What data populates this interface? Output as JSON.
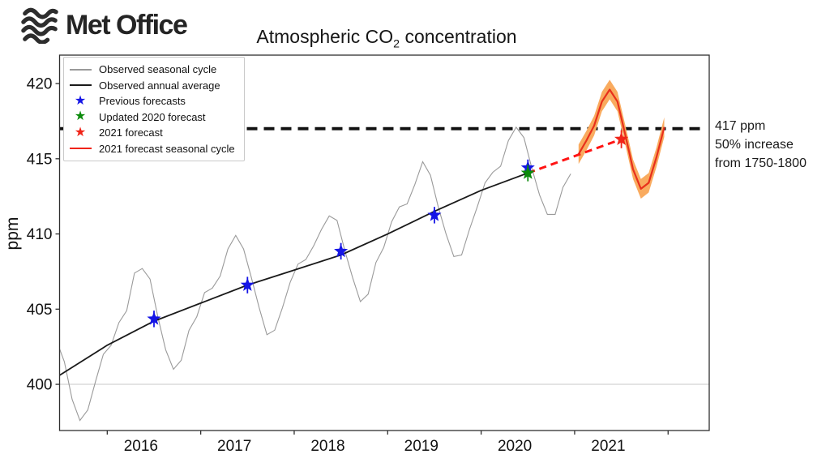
{
  "header": {
    "logo_text": "Met Office"
  },
  "title": {
    "prefix": "Atmospheric CO",
    "sub": "2",
    "suffix": " concentration"
  },
  "annotation": {
    "lines": [
      "417 ppm",
      "50% increase",
      "from 1750-1800"
    ]
  },
  "legend": {
    "items": [
      {
        "label": "Observed seasonal cycle",
        "swatch": "line",
        "color": "#9a9a9a"
      },
      {
        "label": "Observed annual average",
        "swatch": "line",
        "color": "#1a1a1a"
      },
      {
        "label": "Previous forecasts",
        "swatch": "star",
        "color": "#1515e6"
      },
      {
        "label": "Updated 2020 forecast",
        "swatch": "star",
        "color": "#0b8a0b"
      },
      {
        "label": "2021 forecast",
        "swatch": "star",
        "color": "#f02418"
      },
      {
        "label": "2021 forecast seasonal cycle",
        "swatch": "line",
        "color": "#f02418"
      }
    ]
  },
  "chart_data": {
    "type": "line",
    "title": "Atmospheric CO2 concentration",
    "xlabel": "",
    "ylabel": "ppm",
    "xlim": [
      2015.49,
      2022.44
    ],
    "ylim": [
      396.93,
      421.89
    ],
    "yticks": [
      400,
      405,
      410,
      415,
      420
    ],
    "xtick_boundaries": [
      2016,
      2017,
      2018,
      2019,
      2020,
      2021,
      2022
    ],
    "xtick_labels": [
      "2016",
      "2017",
      "2018",
      "2019",
      "2020",
      "2021"
    ],
    "grid": "single light line at 400 ppm",
    "legend_position": "upper left",
    "baseline": {
      "value": 400,
      "color": "#c9c9c9",
      "width": 1
    },
    "threshold": {
      "value": 417,
      "label": "417 ppm",
      "color": "#111111",
      "dash": "13 8",
      "width": 3.8,
      "x_end": 2022.38
    },
    "annotation_lines": [
      "417 ppm",
      "50% increase",
      "from 1750-1800"
    ],
    "series": [
      {
        "name": "Observed seasonal cycle",
        "kind": "monthly-line",
        "color": "#9a9a9a",
        "width": 1.1,
        "start": 2015.458,
        "values": [
          402.9,
          401.5,
          399.0,
          397.6,
          398.3,
          400.2,
          402.0,
          402.6,
          404.1,
          404.9,
          407.4,
          407.7,
          407.0,
          404.5,
          402.3,
          401.0,
          401.6,
          403.6,
          404.5,
          406.1,
          406.4,
          407.2,
          409.0,
          409.9,
          409.0,
          407.1,
          405.1,
          403.3,
          403.6,
          405.1,
          406.8,
          408.0,
          408.3,
          409.2,
          410.3,
          411.2,
          410.9,
          408.9,
          407.1,
          405.5,
          406.0,
          408.1,
          409.1,
          410.8,
          411.8,
          412.0,
          413.3,
          414.8,
          413.9,
          411.8,
          410.0,
          408.5,
          408.6,
          410.3,
          411.8,
          413.4,
          414.1,
          414.5,
          416.2,
          417.1,
          416.4,
          414.4,
          412.6,
          411.3,
          411.3,
          413.1,
          414.0
        ]
      },
      {
        "name": "Observed annual average",
        "kind": "line",
        "color": "#1a1a1a",
        "width": 1.8,
        "x": [
          2015.49,
          2016.0,
          2016.5,
          2017.0,
          2017.5,
          2018.0,
          2018.5,
          2019.0,
          2019.5,
          2020.0,
          2020.5
        ],
        "y": [
          400.6,
          402.6,
          404.2,
          405.4,
          406.6,
          407.6,
          408.6,
          410.0,
          411.5,
          412.9,
          414.05
        ]
      },
      {
        "name": "2021 forecast seasonal cycle",
        "kind": "monthly-band-line",
        "color": "#e8301c",
        "band_color": "#f9ab5f",
        "band": 0.65,
        "width": 2.2,
        "start": 2021.042,
        "values": [
          415.3,
          416.2,
          417.2,
          418.8,
          419.6,
          418.8,
          416.6,
          414.3,
          413.0,
          413.4,
          415.1,
          417.1
        ]
      },
      {
        "name": "2021 forecast trajectory",
        "kind": "dashed-line",
        "color": "#ff1414",
        "width": 3,
        "dash": "9 6",
        "x": [
          2020.5,
          2021.5
        ],
        "y": [
          414.05,
          416.3
        ]
      },
      {
        "name": "Previous forecasts",
        "kind": "stars",
        "color": "#1515e6",
        "size": 9,
        "yerr": 0.55,
        "x": [
          2016.5,
          2017.5,
          2018.5,
          2019.5,
          2020.5
        ],
        "y": [
          404.35,
          406.6,
          408.85,
          411.25,
          414.4
        ]
      },
      {
        "name": "Updated 2020 forecast",
        "kind": "stars",
        "color": "#0b8a0b",
        "size": 9,
        "yerr": 0.55,
        "x": [
          2020.5
        ],
        "y": [
          414.05
        ]
      },
      {
        "name": "2021 forecast",
        "kind": "stars",
        "color": "#f02418",
        "size": 9,
        "yerr": 0.6,
        "x": [
          2021.5
        ],
        "y": [
          416.3
        ]
      }
    ]
  }
}
